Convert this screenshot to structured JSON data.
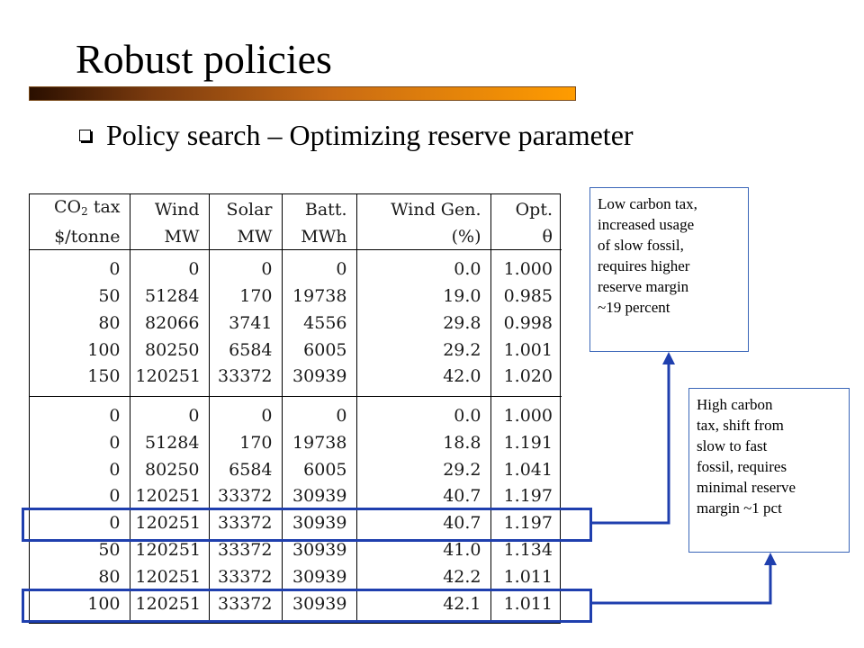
{
  "slide": {
    "title": "Robust policies",
    "bullet": "Policy search – Optimizing reserve parameter"
  },
  "table": {
    "headers": {
      "row1": [
        "CO",
        "tax",
        "Wind",
        "Solar",
        "Batt.",
        "Wind Gen.",
        "Opt."
      ],
      "row2": [
        "$/tonne",
        "MW",
        "MW",
        "MWh",
        "(%)",
        "θ"
      ],
      "co2_subscript": "2"
    },
    "groups": [
      [
        [
          "0",
          "0",
          "0",
          "0",
          "0.0",
          "1.000"
        ],
        [
          "50",
          "51284",
          "170",
          "19738",
          "19.0",
          "0.985"
        ],
        [
          "80",
          "82066",
          "3741",
          "4556",
          "29.8",
          "0.998"
        ],
        [
          "100",
          "80250",
          "6584",
          "6005",
          "29.2",
          "1.001"
        ],
        [
          "150",
          "120251",
          "33372",
          "30939",
          "42.0",
          "1.020"
        ]
      ],
      [
        [
          "0",
          "0",
          "0",
          "0",
          "0.0",
          "1.000"
        ],
        [
          "0",
          "51284",
          "170",
          "19738",
          "18.8",
          "1.191"
        ],
        [
          "0",
          "80250",
          "6584",
          "6005",
          "29.2",
          "1.041"
        ],
        [
          "0",
          "120251",
          "33372",
          "30939",
          "40.7",
          "1.197"
        ],
        [
          "0",
          "120251",
          "33372",
          "30939",
          "40.7",
          "1.197"
        ],
        [
          "50",
          "120251",
          "33372",
          "30939",
          "41.0",
          "1.134"
        ],
        [
          "80",
          "120251",
          "33372",
          "30939",
          "42.2",
          "1.011"
        ],
        [
          "100",
          "120251",
          "33372",
          "30939",
          "42.1",
          "1.011"
        ]
      ]
    ]
  },
  "callouts": {
    "low": [
      "Low carbon tax,",
      "increased usage",
      "of slow fossil,",
      "requires higher",
      "reserve margin",
      "~19 percent"
    ],
    "high": [
      "High carbon",
      "tax, shift from",
      "slow to fast",
      "fossil, requires",
      "minimal reserve",
      "margin ~1 pct"
    ]
  },
  "colors": {
    "highlight": "#1f3fae",
    "title_bar_start": "#2a0f00",
    "title_bar_end": "#ff9c00"
  }
}
